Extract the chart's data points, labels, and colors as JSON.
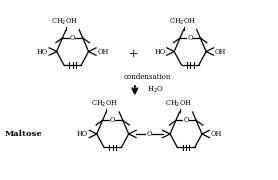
{
  "bg_color": "#ffffff",
  "fig_width": 2.78,
  "fig_height": 1.8,
  "dpi": 100,
  "maltose_label": "Maltose",
  "condensation_label": "condensation",
  "h2o_label": "H$_2$O",
  "plus_label": "+",
  "top_label": "CH$_2$OH",
  "o_label": "O",
  "ho_label": "HO",
  "oh_label": "OH"
}
